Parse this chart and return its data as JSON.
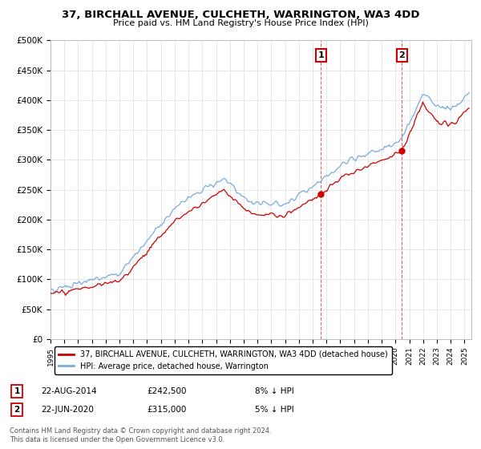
{
  "title": "37, BIRCHALL AVENUE, CULCHETH, WARRINGTON, WA3 4DD",
  "subtitle": "Price paid vs. HM Land Registry's House Price Index (HPI)",
  "legend_line1": "37, BIRCHALL AVENUE, CULCHETH, WARRINGTON, WA3 4DD (detached house)",
  "legend_line2": "HPI: Average price, detached house, Warrington",
  "annotation1_label": "1",
  "annotation1_date": "22-AUG-2014",
  "annotation1_price": "£242,500",
  "annotation1_hpi": "8% ↓ HPI",
  "annotation2_label": "2",
  "annotation2_date": "22-JUN-2020",
  "annotation2_price": "£315,000",
  "annotation2_hpi": "5% ↓ HPI",
  "footer": "Contains HM Land Registry data © Crown copyright and database right 2024.\nThis data is licensed under the Open Government Licence v3.0.",
  "hpi_color": "#7aaadd",
  "price_color": "#cc0000",
  "marker_color": "#cc0000",
  "vline_color": "#cc0000",
  "ylim": [
    0,
    500000
  ],
  "yticks": [
    0,
    50000,
    100000,
    150000,
    200000,
    250000,
    300000,
    350000,
    400000,
    450000,
    500000
  ],
  "background_color": "#ffffff",
  "grid_color": "#dddddd",
  "sale1_t": 2014.622,
  "sale1_p": 242500,
  "sale2_t": 2020.458,
  "sale2_p": 315000
}
